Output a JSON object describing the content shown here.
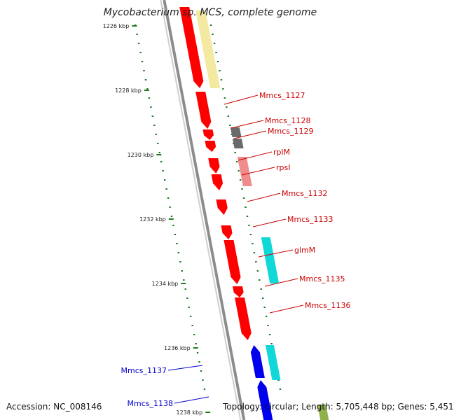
{
  "title": "Mycobacterium sp. MCS, complete genome",
  "accession": "Accession: NC_008146",
  "summary": "Topology: circular; Length: 5,705,448 bp; Genes: 5,451",
  "colors": {
    "backbone": "#8c8c8c",
    "tick": "#1f7a1f",
    "gene_red": "#ff0000",
    "gene_blue": "#0000ee",
    "label_red": "#cc0000",
    "label_blue": "#0000cc",
    "feature_yellow": "#f3e9a1",
    "feature_gray": "#6a6a6a",
    "feature_pink": "#f08c8c",
    "feature_cyan": "#10d8d8",
    "feature_green": "#8fb04a"
  },
  "scale_labels": [
    "1226 kbp",
    "1228 kbp",
    "1230 kbp",
    "1232 kbp",
    "1234 kbp",
    "1236 kbp",
    "1238 kbp"
  ],
  "gene_labels": [
    {
      "name": "Mmcs_1127",
      "strand": "plus"
    },
    {
      "name": "Mmcs_1128",
      "strand": "plus"
    },
    {
      "name": "Mmcs_1129",
      "strand": "plus"
    },
    {
      "name": "rplM",
      "strand": "plus"
    },
    {
      "name": "rpsI",
      "strand": "plus"
    },
    {
      "name": "Mmcs_1132",
      "strand": "plus"
    },
    {
      "name": "Mmcs_1133",
      "strand": "plus"
    },
    {
      "name": "glmM",
      "strand": "plus"
    },
    {
      "name": "Mmcs_1135",
      "strand": "plus"
    },
    {
      "name": "Mmcs_1136",
      "strand": "plus"
    },
    {
      "name": "Mmcs_1137",
      "strand": "minus"
    },
    {
      "name": "Mmcs_1138",
      "strand": "minus"
    }
  ]
}
